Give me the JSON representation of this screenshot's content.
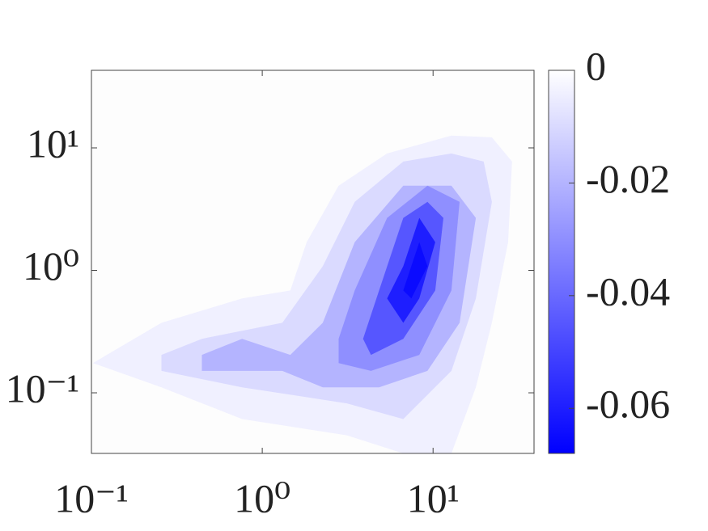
{
  "chart_data": {
    "type": "contourf",
    "xscale": "log",
    "yscale": "log",
    "xlim": [
      0.1,
      39
    ],
    "ylim": [
      0.032,
      43
    ],
    "xticks": [
      {
        "value": 0.1,
        "label": "10⁻¹"
      },
      {
        "value": 1,
        "label": "10⁰"
      },
      {
        "value": 10,
        "label": "10¹"
      }
    ],
    "yticks": [
      {
        "value": 0.1,
        "label": "10⁻¹"
      },
      {
        "value": 1,
        "label": "10⁰"
      },
      {
        "value": 10,
        "label": "10¹"
      }
    ],
    "colormap": [
      "#ffffff",
      "#0000ff"
    ],
    "clim": [
      -0.068,
      0
    ],
    "cticks": [
      0,
      -0.02,
      -0.04,
      -0.06
    ],
    "contours": [
      {
        "level": -0.004,
        "points": [
          [
            0.102,
            0.175
          ],
          [
            0.257,
            0.373
          ],
          [
            0.762,
            0.589
          ],
          [
            1.46,
            0.685
          ],
          [
            1.82,
            1.7
          ],
          [
            2.8,
            4.91
          ],
          [
            5.38,
            9.0
          ],
          [
            12.8,
            12.6
          ],
          [
            22.1,
            12.2
          ],
          [
            29.0,
            7.73
          ],
          [
            27.5,
            1.7
          ],
          [
            22.1,
            0.373
          ],
          [
            17.8,
            0.111
          ],
          [
            12.8,
            0.032
          ],
          [
            6.69,
            0.032
          ],
          [
            3.13,
            0.045
          ],
          [
            0.762,
            0.061
          ],
          [
            0.257,
            0.111
          ]
        ]
      },
      {
        "level": -0.01,
        "points": [
          [
            0.257,
            0.204
          ],
          [
            0.443,
            0.276
          ],
          [
            1.31,
            0.373
          ],
          [
            2.26,
            1.08
          ],
          [
            3.48,
            3.62
          ],
          [
            6.69,
            7.73
          ],
          [
            12.8,
            9.0
          ],
          [
            19.8,
            7.73
          ],
          [
            22.1,
            3.62
          ],
          [
            17.8,
            0.589
          ],
          [
            12.8,
            0.151
          ],
          [
            6.69,
            0.061
          ],
          [
            3.13,
            0.082
          ],
          [
            0.762,
            0.111
          ],
          [
            0.257,
            0.151
          ]
        ]
      },
      {
        "level": -0.02,
        "points": [
          [
            0.443,
            0.204
          ],
          [
            0.762,
            0.276
          ],
          [
            1.46,
            0.204
          ],
          [
            2.26,
            0.373
          ],
          [
            3.48,
            1.7
          ],
          [
            6.69,
            4.91
          ],
          [
            12.8,
            4.91
          ],
          [
            17.8,
            2.68
          ],
          [
            14.3,
            0.373
          ],
          [
            9.27,
            0.151
          ],
          [
            4.83,
            0.111
          ],
          [
            2.26,
            0.111
          ],
          [
            1.31,
            0.151
          ],
          [
            0.443,
            0.151
          ]
        ]
      },
      {
        "level": -0.03,
        "points": [
          [
            2.8,
            0.276
          ],
          [
            3.48,
            0.685
          ],
          [
            5.38,
            2.68
          ],
          [
            9.27,
            4.91
          ],
          [
            14.3,
            3.62
          ],
          [
            12.8,
            0.685
          ],
          [
            8.31,
            0.204
          ],
          [
            4.33,
            0.151
          ],
          [
            2.8,
            0.175
          ]
        ]
      },
      {
        "level": -0.045,
        "points": [
          [
            3.89,
            0.276
          ],
          [
            4.83,
            0.685
          ],
          [
            6.69,
            2.68
          ],
          [
            9.27,
            3.62
          ],
          [
            11.5,
            2.68
          ],
          [
            10.3,
            0.685
          ],
          [
            6.69,
            0.276
          ],
          [
            4.33,
            0.204
          ]
        ]
      },
      {
        "level": -0.06,
        "points": [
          [
            5.38,
            0.589
          ],
          [
            6.69,
            1.08
          ],
          [
            8.31,
            2.68
          ],
          [
            10.3,
            1.7
          ],
          [
            8.31,
            0.589
          ],
          [
            6.69,
            0.373
          ]
        ]
      },
      {
        "level": -0.065,
        "points": [
          [
            6.69,
            0.685
          ],
          [
            8.31,
            1.7
          ],
          [
            9.27,
            1.08
          ],
          [
            7.46,
            0.589
          ]
        ]
      }
    ]
  }
}
